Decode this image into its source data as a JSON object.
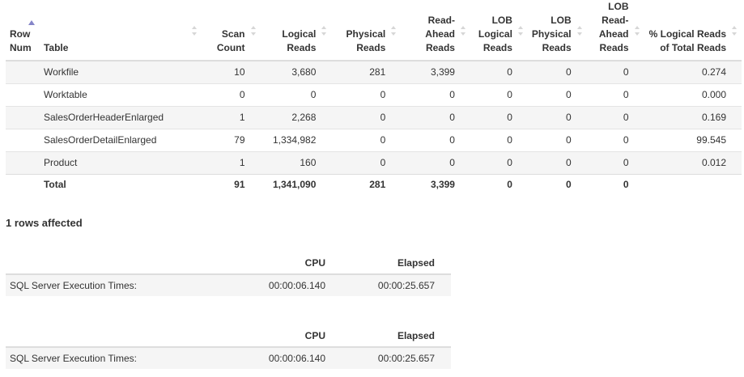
{
  "io_table": {
    "columns": [
      {
        "label": "Row Num",
        "align": "left"
      },
      {
        "label": "Table",
        "align": "left"
      },
      {
        "label": "Scan Count",
        "align": "right"
      },
      {
        "label": "Logical Reads",
        "align": "right"
      },
      {
        "label": "Physical Reads",
        "align": "right"
      },
      {
        "label": "Read-Ahead Reads",
        "align": "right"
      },
      {
        "label": "LOB Logical Reads",
        "align": "right"
      },
      {
        "label": "LOB Physical Reads",
        "align": "right"
      },
      {
        "label": "LOB Read-Ahead Reads",
        "align": "right"
      },
      {
        "label": "% Logical Reads of Total Reads",
        "align": "right"
      }
    ],
    "sorted_column": "Row Num",
    "sort_direction": "ascending",
    "rows": [
      [
        "",
        "Workfile",
        "10",
        "3,680",
        "281",
        "3,399",
        "0",
        "0",
        "0",
        "0.274"
      ],
      [
        "",
        "Worktable",
        "0",
        "0",
        "0",
        "0",
        "0",
        "0",
        "0",
        "0.000"
      ],
      [
        "",
        "SalesOrderHeaderEnlarged",
        "1",
        "2,268",
        "0",
        "0",
        "0",
        "0",
        "0",
        "0.169"
      ],
      [
        "",
        "SalesOrderDetailEnlarged",
        "79",
        "1,334,982",
        "0",
        "0",
        "0",
        "0",
        "0",
        "99.545"
      ],
      [
        "",
        "Product",
        "1",
        "160",
        "0",
        "0",
        "0",
        "0",
        "0",
        "0.012"
      ]
    ],
    "total": [
      "",
      "Total",
      "91",
      "1,341,090",
      "281",
      "3,399",
      "0",
      "0",
      "0",
      ""
    ]
  },
  "rows_affected": "1 rows affected",
  "time_tables": [
    {
      "headers": [
        "",
        "CPU",
        "Elapsed"
      ],
      "row": [
        "SQL Server Execution Times:",
        "00:00:06.140",
        "00:00:25.657"
      ]
    },
    {
      "headers": [
        "",
        "CPU",
        "Elapsed"
      ],
      "row": [
        "SQL Server Execution Times:",
        "00:00:06.140",
        "00:00:25.657"
      ]
    }
  ],
  "colors": {
    "stripe": "#f5f5f5",
    "border": "#dddddd",
    "sort_active": "#8585c8",
    "sort_inactive": "#d6d6d6"
  }
}
